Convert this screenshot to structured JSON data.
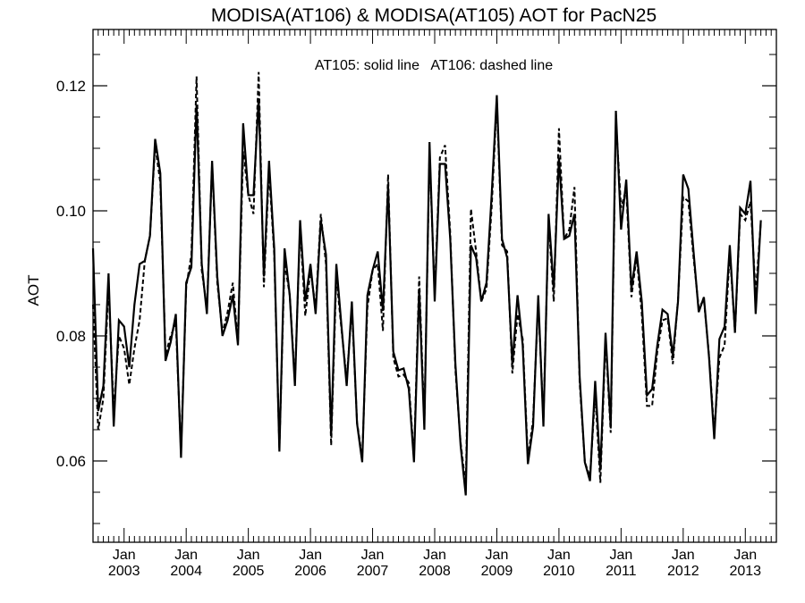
{
  "chart_data": {
    "type": "line",
    "title": "MODISA(AT106) & MODISA(AT105)  AOT for PacN25",
    "annotation": "AT105: solid line   AT106: dashed line",
    "ylabel": "AOT",
    "xlabel": "",
    "x_start": "2002-07",
    "x_end": "2013-07",
    "x_tick_month_label": "Jan",
    "x_tick_years": [
      "2003",
      "2004",
      "2005",
      "2006",
      "2007",
      "2008",
      "2009",
      "2010",
      "2011",
      "2012",
      "2013"
    ],
    "ylim": [
      0.047,
      0.129
    ],
    "y_ticks": [
      0.06,
      0.08,
      0.1,
      0.12
    ],
    "y_tick_labels": [
      "0.06",
      "0.08",
      "0.10",
      "0.12"
    ],
    "grid": false,
    "series": [
      {
        "name": "AT105",
        "style": "solid",
        "color": "#000000",
        "values": [
          0.094,
          0.068,
          0.072,
          0.09,
          0.0655,
          0.0825,
          0.0815,
          0.075,
          0.085,
          0.0915,
          0.092,
          0.096,
          0.1115,
          0.106,
          0.076,
          0.079,
          0.0835,
          0.0605,
          0.0885,
          0.091,
          0.117,
          0.0915,
          0.0835,
          0.108,
          0.0895,
          0.08,
          0.0825,
          0.0865,
          0.0785,
          0.114,
          0.1025,
          0.1025,
          0.118,
          0.0895,
          0.108,
          0.094,
          0.0615,
          0.094,
          0.0865,
          0.072,
          0.0985,
          0.0855,
          0.0915,
          0.0835,
          0.0985,
          0.093,
          0.064,
          0.0915,
          0.0815,
          0.072,
          0.0855,
          0.066,
          0.0598,
          0.0865,
          0.0905,
          0.0935,
          0.084,
          0.104,
          0.0775,
          0.0745,
          0.0748,
          0.0715,
          0.0598,
          0.0875,
          0.065,
          0.111,
          0.0855,
          0.1075,
          0.1075,
          0.0955,
          0.0755,
          0.0625,
          0.0545,
          0.0945,
          0.0925,
          0.0855,
          0.0885,
          0.1025,
          0.1185,
          0.0955,
          0.0925,
          0.0755,
          0.0865,
          0.0785,
          0.0595,
          0.0655,
          0.0865,
          0.0655,
          0.0995,
          0.0875,
          0.1085,
          0.0955,
          0.096,
          0.0995,
          0.0735,
          0.0598,
          0.0568,
          0.0728,
          0.0585,
          0.0805,
          0.0655,
          0.116,
          0.097,
          0.105,
          0.0875,
          0.0935,
          0.0855,
          0.0705,
          0.0715,
          0.0785,
          0.0842,
          0.0835,
          0.0768,
          0.0855,
          0.1058,
          0.1035,
          0.0935,
          0.0838,
          0.0862,
          0.0765,
          0.0635,
          0.0795,
          0.0815,
          0.0945,
          0.0805,
          0.1005,
          0.0995,
          0.1048,
          0.0835,
          0.0985
        ]
      },
      {
        "name": "AT106",
        "style": "dashed",
        "color": "#000000",
        "values": [
          0.085,
          0.065,
          0.07,
          0.088,
          0.068,
          0.08,
          0.078,
          0.0722,
          0.078,
          0.0825,
          0.092,
          0.096,
          0.1105,
          0.1045,
          0.077,
          0.08,
          0.082,
          0.0615,
          0.0878,
          0.093,
          0.1215,
          0.0905,
          0.0845,
          0.1075,
          0.0885,
          0.0805,
          0.0838,
          0.0885,
          0.079,
          0.1095,
          0.1025,
          0.0995,
          0.1222,
          0.0878,
          0.1065,
          0.093,
          0.062,
          0.0918,
          0.0865,
          0.0728,
          0.0975,
          0.0832,
          0.0905,
          0.0845,
          0.0995,
          0.0915,
          0.0625,
          0.0895,
          0.081,
          0.073,
          0.0845,
          0.0662,
          0.0605,
          0.0845,
          0.0905,
          0.0915,
          0.0808,
          0.1058,
          0.0765,
          0.0735,
          0.0738,
          0.0725,
          0.0605,
          0.0895,
          0.066,
          0.1095,
          0.0865,
          0.1085,
          0.1105,
          0.0965,
          0.0745,
          0.063,
          0.056,
          0.1003,
          0.0935,
          0.0855,
          0.0875,
          0.1005,
          0.1175,
          0.0945,
          0.0935,
          0.074,
          0.0835,
          0.0795,
          0.0605,
          0.0665,
          0.0855,
          0.0665,
          0.0985,
          0.0855,
          0.1132,
          0.0955,
          0.097,
          0.1038,
          0.0725,
          0.0598,
          0.0575,
          0.0708,
          0.0565,
          0.0795,
          0.0645,
          0.1145,
          0.1005,
          0.1035,
          0.0862,
          0.0928,
          0.0835,
          0.0688,
          0.0688,
          0.0775,
          0.0825,
          0.0828,
          0.0755,
          0.0858,
          0.1022,
          0.1015,
          0.0925,
          0.0845,
          0.0858,
          0.0768,
          0.0645,
          0.0765,
          0.0785,
          0.0935,
          0.0805,
          0.0995,
          0.0985,
          0.1015,
          0.0868,
          0.0982
        ]
      }
    ]
  }
}
